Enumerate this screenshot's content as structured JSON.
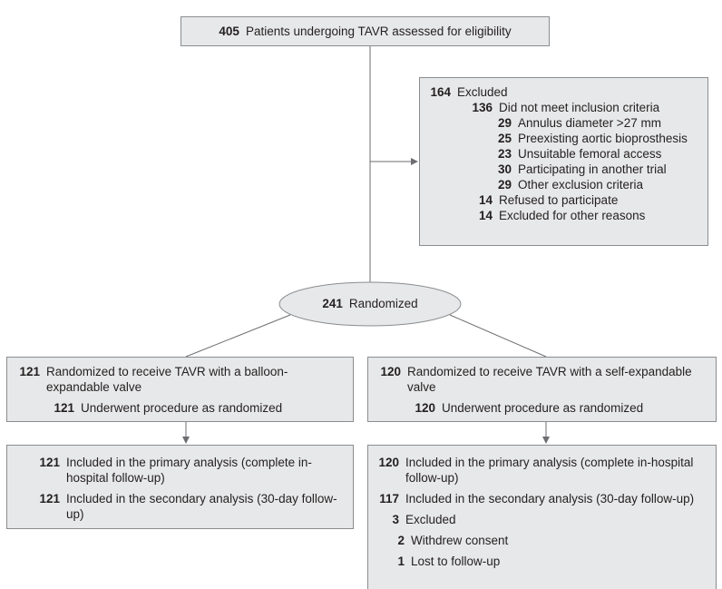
{
  "boxes": {
    "assessed": {
      "items": [
        {
          "n": 405,
          "label": "Patients undergoing TAVR assessed for eligibility"
        }
      ]
    },
    "excluded": {
      "items": [
        {
          "n": 164,
          "label": "Excluded",
          "items": [
            {
              "n": 136,
              "label": "Did not meet inclusion criteria",
              "items": [
                {
                  "n": 29,
                  "label": "Annulus diameter >27 mm"
                },
                {
                  "n": 25,
                  "label": "Preexisting aortic bioprosthesis"
                },
                {
                  "n": 23,
                  "label": "Unsuitable femoral access"
                },
                {
                  "n": 30,
                  "label": "Participating in another trial"
                },
                {
                  "n": 29,
                  "label": "Other exclusion criteria"
                }
              ]
            },
            {
              "n": 14,
              "label": "Refused to participate"
            },
            {
              "n": 14,
              "label": "Excluded for other reasons"
            }
          ]
        }
      ]
    },
    "randomized": {
      "items": [
        {
          "n": 241,
          "label": "Randomized"
        }
      ]
    },
    "balloon_arm": {
      "items": [
        {
          "n": 121,
          "label": "Randomized to receive TAVR with a balloon-expandable valve",
          "items": [
            {
              "n": 121,
              "label": "Underwent procedure as randomized"
            }
          ]
        }
      ]
    },
    "self_arm": {
      "items": [
        {
          "n": 120,
          "label": "Randomized to receive TAVR with a self-expandable valve",
          "items": [
            {
              "n": 120,
              "label": "Underwent procedure as randomized"
            }
          ]
        }
      ]
    },
    "balloon_analysis": {
      "items": [
        {
          "n": 121,
          "label": "Included in the primary analysis (complete in-hospital follow-up)"
        },
        {
          "n": 121,
          "label": "Included in the secondary analysis (30-day follow-up)"
        }
      ]
    },
    "self_analysis": {
      "items": [
        {
          "n": 120,
          "label": "Included in the primary analysis (complete in-hospital follow-up)"
        },
        {
          "n": 117,
          "label": "Included in the secondary analysis (30-day follow-up)"
        },
        {
          "n": 3,
          "label": "Excluded",
          "items": [
            {
              "n": 2,
              "label": "Withdrew consent"
            },
            {
              "n": 1,
              "label": "Lost to follow-up"
            }
          ]
        }
      ]
    }
  }
}
